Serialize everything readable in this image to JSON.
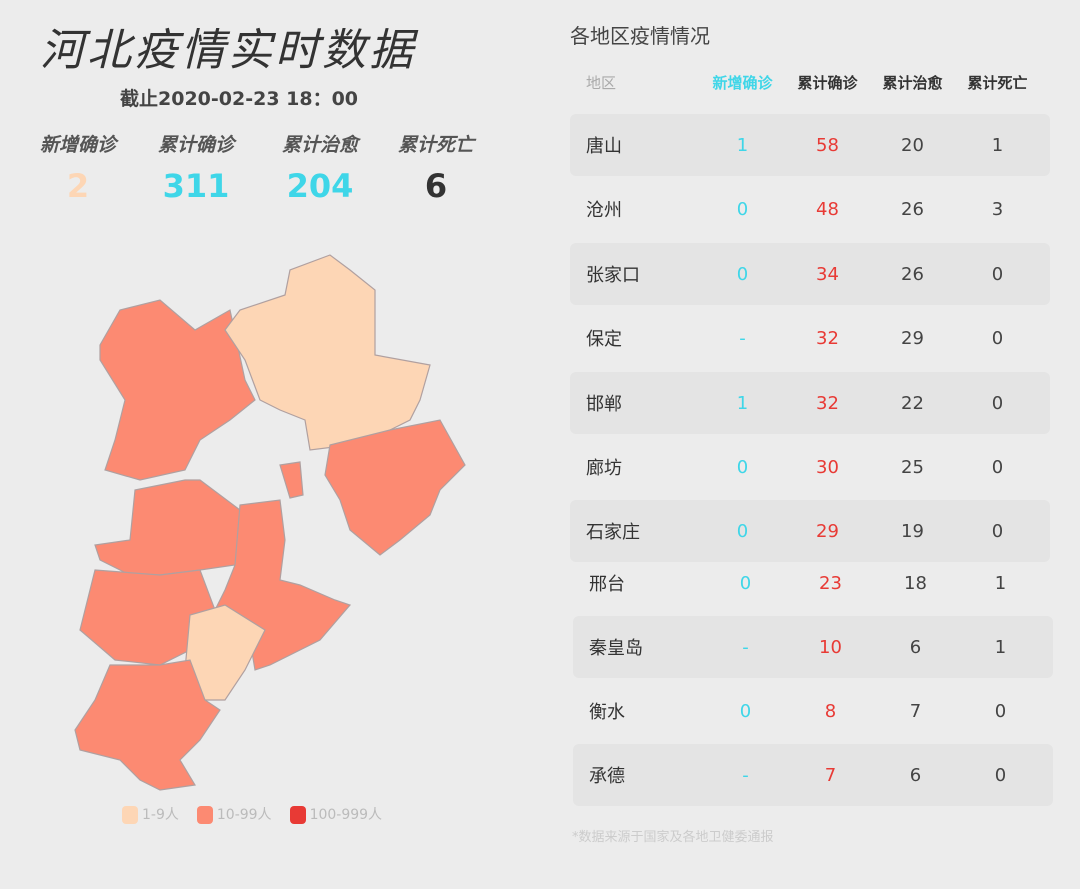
{
  "title": "河北疫情实时数据",
  "subtitle": "截止2020-02-23 18：00",
  "stats": [
    {
      "label": "新增确诊",
      "value": "2",
      "color": "#fdd6b5"
    },
    {
      "label": "累计确诊",
      "value": "311",
      "color": "#3fd6e8"
    },
    {
      "label": "累计治愈",
      "value": "204",
      "color": "#3fd6e8"
    },
    {
      "label": "累计死亡",
      "value": "6",
      "color": "#333333"
    }
  ],
  "legend": [
    {
      "label": "1-9人",
      "color": "#fdd6b5"
    },
    {
      "label": "10-99人",
      "color": "#fc8a72"
    },
    {
      "label": "100-999人",
      "color": "#e83a35"
    }
  ],
  "map_regions": [
    {
      "name": "张家口",
      "level": "10-99人"
    },
    {
      "name": "承德",
      "level": "1-9人"
    },
    {
      "name": "唐山",
      "level": "10-99人"
    },
    {
      "name": "廊坊",
      "level": "10-99人"
    },
    {
      "name": "保定",
      "level": "10-99人"
    },
    {
      "name": "沧州",
      "level": "10-99人"
    },
    {
      "name": "石家庄",
      "level": "10-99人"
    },
    {
      "name": "衡水",
      "level": "1-9人"
    },
    {
      "name": "邢台邯郸",
      "level": "10-99人"
    }
  ],
  "table": {
    "title": "各地区疫情情况",
    "headers": [
      "地区",
      "新增确诊",
      "累计确诊",
      "累计治愈",
      "累计死亡"
    ],
    "rows": [
      [
        "唐山",
        "1",
        "58",
        "20",
        "1"
      ],
      [
        "沧州",
        "0",
        "48",
        "26",
        "3"
      ],
      [
        "张家口",
        "0",
        "34",
        "26",
        "0"
      ],
      [
        "保定",
        "-",
        "32",
        "29",
        "0"
      ],
      [
        "邯郸",
        "1",
        "32",
        "22",
        "0"
      ],
      [
        "廊坊",
        "0",
        "30",
        "25",
        "0"
      ],
      [
        "石家庄",
        "0",
        "29",
        "19",
        "0"
      ],
      [
        "邢台",
        "0",
        "23",
        "18",
        "1"
      ],
      [
        "秦皇岛",
        "-",
        "10",
        "6",
        "1"
      ],
      [
        "衡水",
        "0",
        "8",
        "7",
        "0"
      ],
      [
        "承德",
        "-",
        "7",
        "6",
        "0"
      ]
    ]
  },
  "note": "*数据来源于国家及各地卫健委通报"
}
